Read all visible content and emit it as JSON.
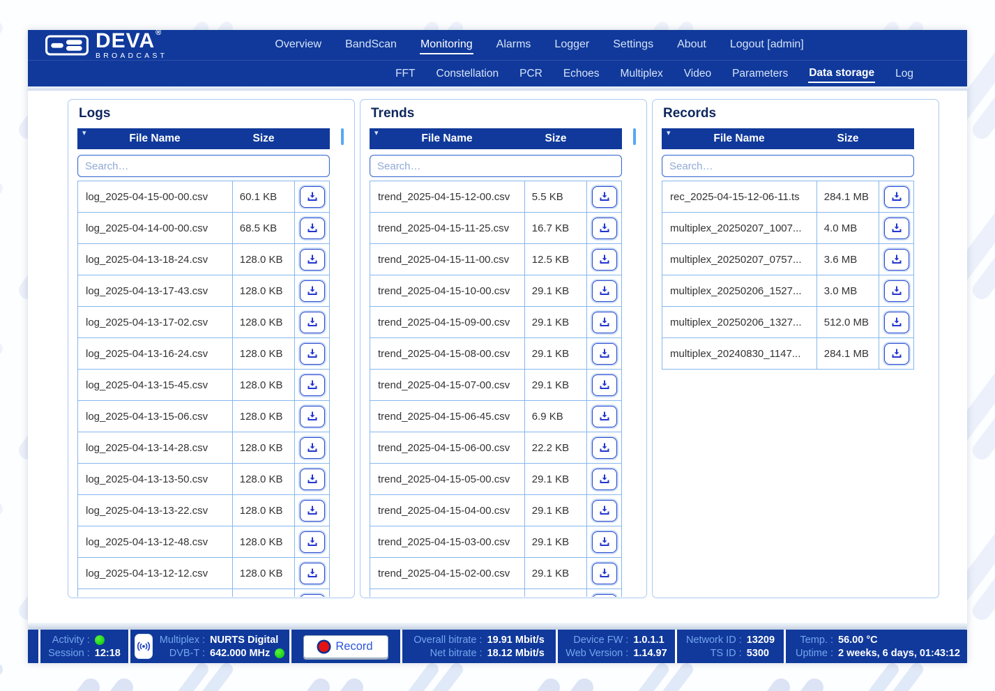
{
  "brand": {
    "name": "DEVA",
    "reg": "®",
    "sub": "BROADCAST"
  },
  "nav": {
    "items": [
      {
        "label": "Overview",
        "active": false
      },
      {
        "label": "BandScan",
        "active": false
      },
      {
        "label": "Monitoring",
        "active": true
      },
      {
        "label": "Alarms",
        "active": false
      },
      {
        "label": "Logger",
        "active": false
      },
      {
        "label": "Settings",
        "active": false
      },
      {
        "label": "About",
        "active": false
      },
      {
        "label": "Logout [admin]",
        "active": false
      }
    ]
  },
  "subnav": {
    "items": [
      {
        "label": "FFT",
        "active": false
      },
      {
        "label": "Constellation",
        "active": false
      },
      {
        "label": "PCR",
        "active": false
      },
      {
        "label": "Echoes",
        "active": false
      },
      {
        "label": "Multiplex",
        "active": false
      },
      {
        "label": "Video",
        "active": false
      },
      {
        "label": "Parameters",
        "active": false
      },
      {
        "label": "Data storage",
        "active": true
      },
      {
        "label": "Log",
        "active": false
      }
    ]
  },
  "icons": {
    "sort_arrow": "▾"
  },
  "panels": [
    {
      "title": "Logs",
      "col_file": "File Name",
      "col_size": "Size",
      "search_placeholder": "Search…",
      "scrollbar": true,
      "clipped": true,
      "rows": [
        {
          "name": "log_2025-04-15-00-00.csv",
          "size": "60.1 KB"
        },
        {
          "name": "log_2025-04-14-00-00.csv",
          "size": "68.5 KB"
        },
        {
          "name": "log_2025-04-13-18-24.csv",
          "size": "128.0 KB"
        },
        {
          "name": "log_2025-04-13-17-43.csv",
          "size": "128.0 KB"
        },
        {
          "name": "log_2025-04-13-17-02.csv",
          "size": "128.0 KB"
        },
        {
          "name": "log_2025-04-13-16-24.csv",
          "size": "128.0 KB"
        },
        {
          "name": "log_2025-04-13-15-45.csv",
          "size": "128.0 KB"
        },
        {
          "name": "log_2025-04-13-15-06.csv",
          "size": "128.0 KB"
        },
        {
          "name": "log_2025-04-13-14-28.csv",
          "size": "128.0 KB"
        },
        {
          "name": "log_2025-04-13-13-50.csv",
          "size": "128.0 KB"
        },
        {
          "name": "log_2025-04-13-13-22.csv",
          "size": "128.0 KB"
        },
        {
          "name": "log_2025-04-13-12-48.csv",
          "size": "128.0 KB"
        },
        {
          "name": "log_2025-04-13-12-12.csv",
          "size": "128.0 KB"
        }
      ]
    },
    {
      "title": "Trends",
      "col_file": "File Name",
      "col_size": "Size",
      "search_placeholder": "Search…",
      "scrollbar": true,
      "clipped": true,
      "rows": [
        {
          "name": "trend_2025-04-15-12-00.csv",
          "size": "5.5 KB"
        },
        {
          "name": "trend_2025-04-15-11-25.csv",
          "size": "16.7 KB"
        },
        {
          "name": "trend_2025-04-15-11-00.csv",
          "size": "12.5 KB"
        },
        {
          "name": "trend_2025-04-15-10-00.csv",
          "size": "29.1 KB"
        },
        {
          "name": "trend_2025-04-15-09-00.csv",
          "size": "29.1 KB"
        },
        {
          "name": "trend_2025-04-15-08-00.csv",
          "size": "29.1 KB"
        },
        {
          "name": "trend_2025-04-15-07-00.csv",
          "size": "29.1 KB"
        },
        {
          "name": "trend_2025-04-15-06-45.csv",
          "size": "6.9 KB"
        },
        {
          "name": "trend_2025-04-15-06-00.csv",
          "size": "22.2 KB"
        },
        {
          "name": "trend_2025-04-15-05-00.csv",
          "size": "29.1 KB"
        },
        {
          "name": "trend_2025-04-15-04-00.csv",
          "size": "29.1 KB"
        },
        {
          "name": "trend_2025-04-15-03-00.csv",
          "size": "29.1 KB"
        },
        {
          "name": "trend_2025-04-15-02-00.csv",
          "size": "29.1 KB"
        }
      ]
    },
    {
      "title": "Records",
      "col_file": "File Name",
      "col_size": "Size",
      "search_placeholder": "Search…",
      "scrollbar": false,
      "clipped": false,
      "rows": [
        {
          "name": "rec_2025-04-15-12-06-11.ts",
          "size": "284.1 MB"
        },
        {
          "name": "multiplex_20250207_1007...",
          "size": "4.0 MB"
        },
        {
          "name": "multiplex_20250207_0757...",
          "size": "3.6 MB"
        },
        {
          "name": "multiplex_20250206_1527...",
          "size": "3.0 MB"
        },
        {
          "name": "multiplex_20250206_1327...",
          "size": "512.0 MB"
        },
        {
          "name": "multiplex_20240830_1147...",
          "size": "284.1 MB"
        }
      ]
    }
  ],
  "footer": {
    "activity_label": "Activity :",
    "session_label": "Session :",
    "session_value": "12:18",
    "multiplex_label": "Multiplex :",
    "multiplex_value": "NURTS Digital",
    "dvbt_label": "DVB-T :",
    "dvbt_value": "642.000 MHz",
    "record_label": "Record",
    "overall_bitrate_label": "Overall bitrate :",
    "overall_bitrate_value": "19.91 Mbit/s",
    "net_bitrate_label": "Net bitrate :",
    "net_bitrate_value": "18.12 Mbit/s",
    "device_fw_label": "Device FW :",
    "device_fw_value": "1.0.1.1",
    "web_version_label": "Web Version :",
    "web_version_value": "1.14.97",
    "network_id_label": "Network ID :",
    "network_id_value": "13209",
    "ts_id_label": "TS ID :",
    "ts_id_value": "5300",
    "temp_label": "Temp. :",
    "temp_value": "56.00 °C",
    "uptime_label": "Uptime :",
    "uptime_value": "2 weeks, 6 days, 01:43:12"
  },
  "colors": {
    "navy": "#10399b",
    "panel_border": "#aac9f2",
    "table_border": "#86b7ef",
    "title_navy": "#0c265e",
    "icon_blue": "#2335cf",
    "thumb_blue": "#57a8f2",
    "label_blue": "#76a5ef",
    "led_green": "#22d81e",
    "record_red": "#e51212",
    "watermark_blue": "#2a63c8"
  }
}
